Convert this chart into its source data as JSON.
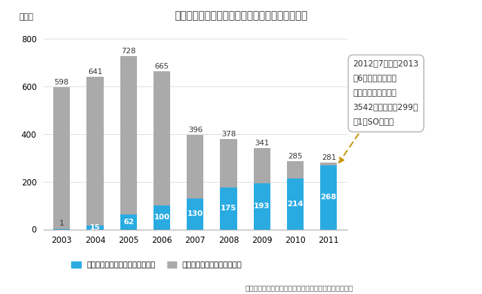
{
  "title": "株式報酬型ストック・オプション導入件数の推移",
  "years": [
    2003,
    2004,
    2005,
    2006,
    2007,
    2008,
    2009,
    2010,
    2011
  ],
  "stock_option_blue": [
    1,
    15,
    62,
    100,
    130,
    175,
    193,
    214,
    268
  ],
  "stock_option_gray": [
    597,
    626,
    666,
    565,
    266,
    203,
    148,
    71,
    13
  ],
  "blue_color": "#29ABE2",
  "gray_color": "#AAAAAA",
  "ylabel": "（件）",
  "ylim": [
    0,
    840
  ],
  "yticks": [
    0,
    200,
    400,
    600,
    800
  ],
  "legend_blue": "株式報酬型ストック・オプション",
  "legend_gray": "通常型ストック・オプション",
  "source_text": "（出所）法政大学竹口教授のデータを元に大和総研作成",
  "annotation_text": "2012年7月期～2013\n年6月期決算の有価\n証券報告書提出企業\n3542社のうち、299社\nが1円SOを導入",
  "total_labels": [
    598,
    641,
    728,
    665,
    396,
    378,
    341,
    285,
    281
  ],
  "background_color": "#FFFFFF",
  "title_fontsize": 10.5,
  "label_fontsize": 8,
  "tick_fontsize": 8.5
}
